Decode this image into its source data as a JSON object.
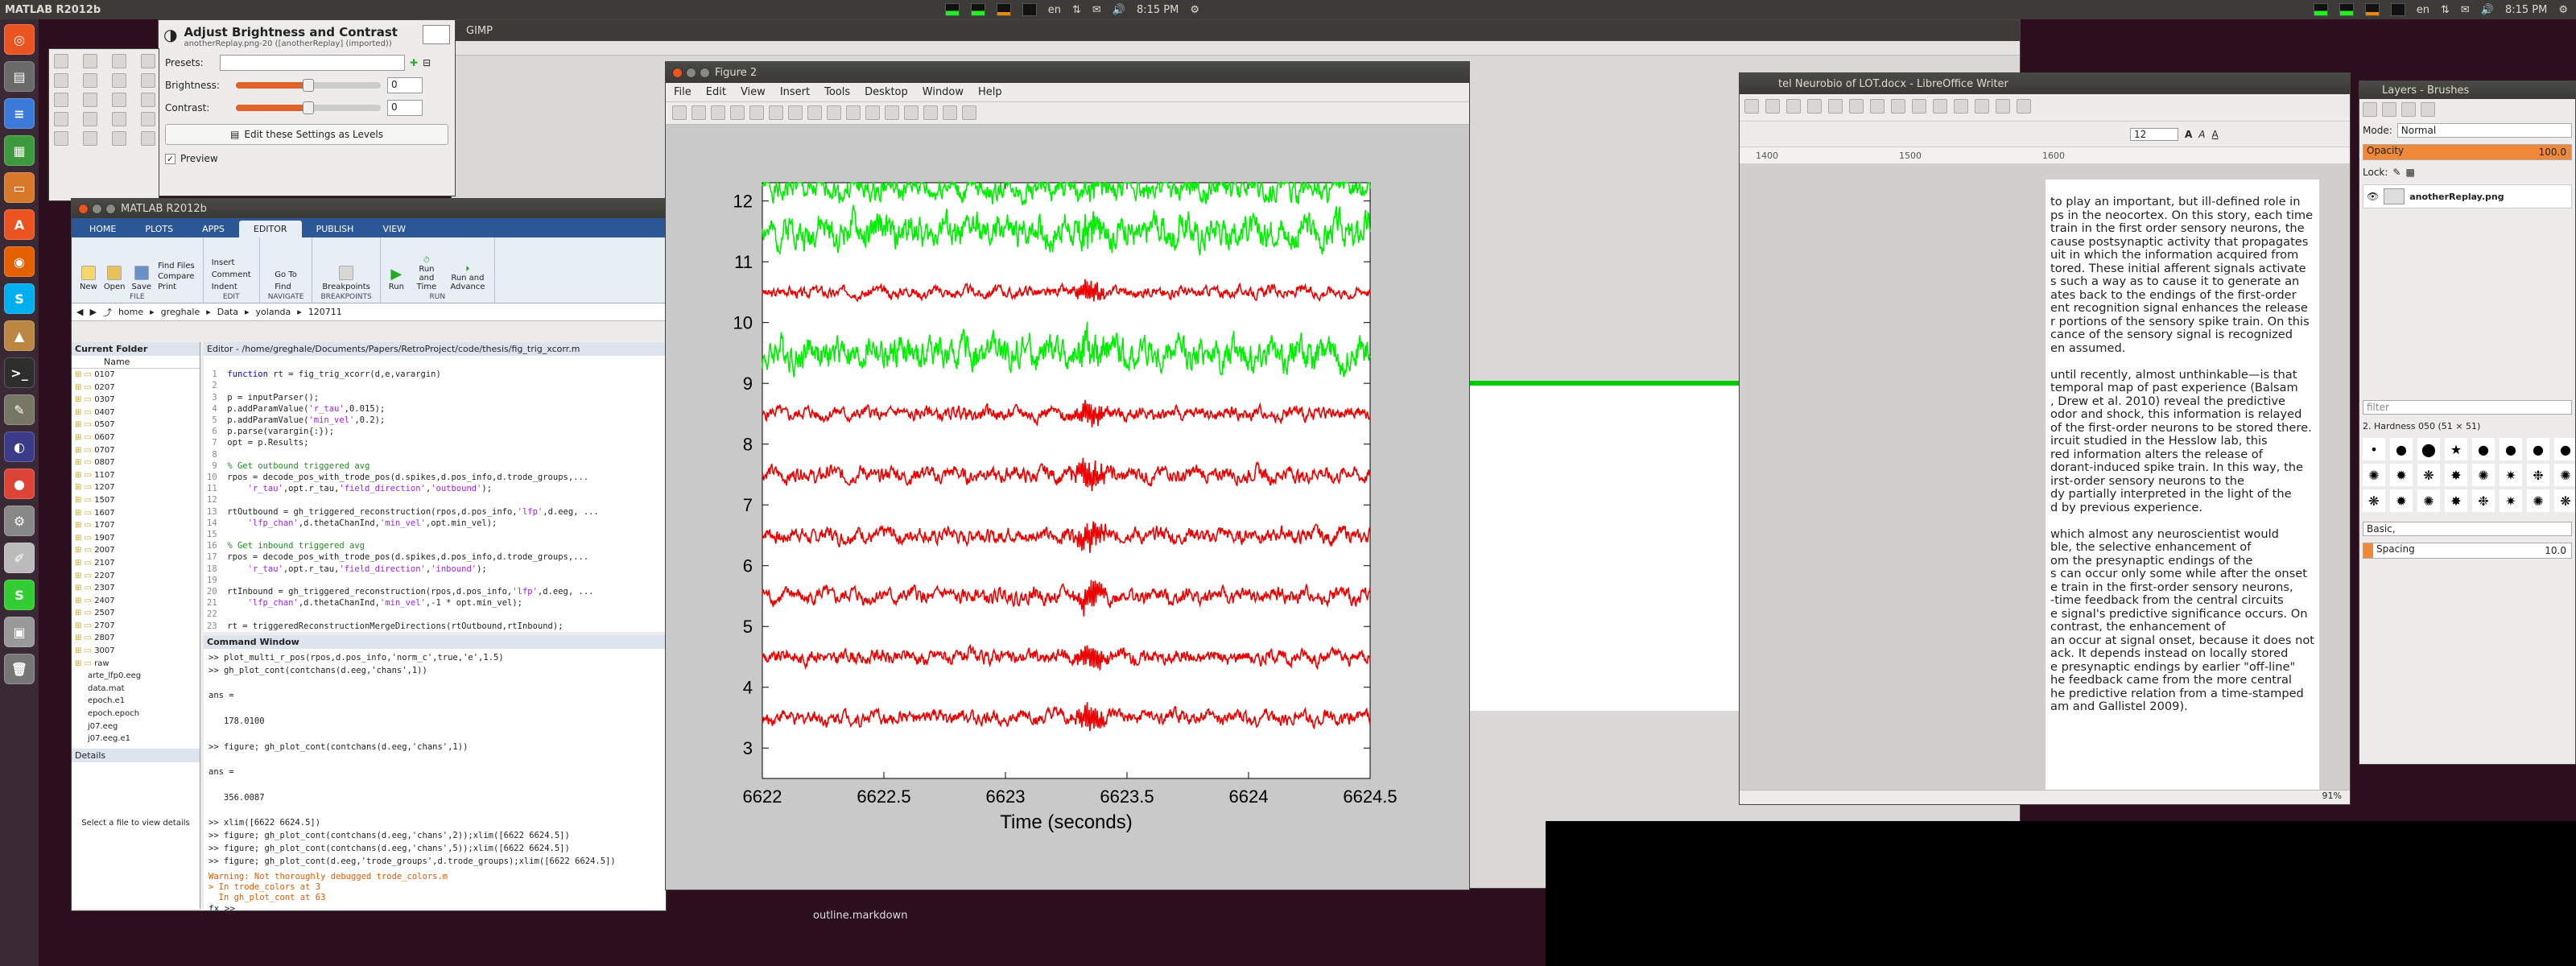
{
  "top_panel": {
    "left_app": "MATLAB R2012b",
    "time": "8:15 PM",
    "lang": "en"
  },
  "gimp": {
    "menubar_title": "GIMP"
  },
  "bc_dialog": {
    "title": "Adjust Brightness and Contrast",
    "subtitle": "anotherReplay.png-20 ([anotherReplay] (imported))",
    "presets_label": "Presets:",
    "brightness_label": "Brightness:",
    "brightness_value": "0",
    "contrast_label": "Contrast:",
    "contrast_value": "0",
    "levels_button": "Edit these Settings as Levels",
    "preview_label": "Preview",
    "brightness_level": 0.5,
    "contrast_level": 0.5
  },
  "matlab": {
    "title": "MATLAB R2012b",
    "tabs": [
      "HOME",
      "PLOTS",
      "APPS",
      "EDITOR",
      "PUBLISH",
      "VIEW"
    ],
    "ribbon": {
      "new": "New",
      "open": "Open",
      "save": "Save",
      "find_files": "Find Files",
      "compare": "Compare",
      "print": "Print",
      "file": "FILE",
      "insert": "Insert",
      "comment": "Comment",
      "indent": "Indent",
      "edit": "EDIT",
      "goto": "Go To",
      "find": "Find",
      "navigate": "NAVIGATE",
      "breakpoints": "Breakpoints",
      "breakpoint_grp": "BREAKPOINTS",
      "run": "Run",
      "run_and_time": "Run and Time",
      "run_and_advance": "Run and Advance",
      "run_grp": "RUN"
    },
    "path": [
      "home",
      "greghale",
      "Data",
      "yolanda",
      "120711"
    ],
    "current_folder": "Current Folder",
    "name_col": "Name",
    "folders": [
      "0107",
      "0207",
      "0307",
      "0407",
      "0507",
      "0607",
      "0707",
      "0807",
      "1107",
      "1207",
      "1507",
      "1607",
      "1707",
      "1907",
      "2007",
      "2107",
      "2207",
      "2307",
      "2407",
      "2507",
      "2707",
      "2807",
      "3007",
      "raw"
    ],
    "files": [
      "arte_lfp0.eeg",
      "data.mat",
      "epoch.e1",
      "epoch.epoch",
      "j07.eeg",
      "j07.eeg.e1"
    ],
    "details": "Details",
    "select_file": "Select a file to view details",
    "editor_path": "Editor - /home/greghale/Documents/Papers/RetroProject/code/thesis/fig_trig_xcorr.m",
    "cmd_title": "Command Window",
    "cmd_lines": [
      ">> plot_multi_r_pos(rpos,d.pos_info,'norm_c',true,'e',1.5)",
      ">> gh_plot_cont(contchans(d.eeg,'chans',1))",
      "",
      "ans =",
      "",
      "   178.0100",
      "",
      ">> figure; gh_plot_cont(contchans(d.eeg,'chans',1))",
      "",
      "ans =",
      "",
      "   356.0087",
      "",
      ">> xlim([6622 6624.5])",
      ">> figure; gh_plot_cont(contchans(d.eeg,'chans',2));xlim([6622 6624.5])",
      ">> figure; gh_plot_cont(contchans(d.eeg,'chans',5));xlim([6622 6624.5])",
      ">> figure; gh_plot_cont(d.eeg,'trode_groups',d.trode_groups);xlim([6622 6624.5])"
    ],
    "warn_lines": [
      "Warning: Not thoroughly debugged trode_colors.m",
      "> In trode_colors at 3",
      "  In gh_plot_cont at 63"
    ],
    "prompt": "fx >>"
  },
  "figure": {
    "title": "Figure 2",
    "menus": [
      "File",
      "Edit",
      "View",
      "Insert",
      "Tools",
      "Desktop",
      "Window",
      "Help"
    ]
  },
  "writer": {
    "title": "tel Neurobio of LOT.docx - LibreOffice Writer",
    "font_size": "12",
    "zoom": "91%",
    "ruler": [
      "1400",
      "1500",
      "1600"
    ],
    "lines": [
      "to play an important, but ill-defined role in",
      "ps in the neocortex. On this story, each time",
      "train in the first order sensory neurons, the",
      "cause postsynaptic activity that propagates",
      "uit in which the information acquired from",
      "tored. These initial afferent signals activate",
      "s such a way as to cause it to generate an",
      "ates back to the endings of the first-order",
      "ent recognition signal enhances the release",
      "r portions of the sensory spike train. On this",
      "cance of the sensory signal is recognized",
      "en assumed.",
      "",
      "until recently, almost unthinkable—is that",
      "temporal map of past experience (Balsam",
      ", Drew et al. 2010) reveal the predictive",
      "odor and shock, this information is relayed",
      "of the first-order neurons to be stored there.",
      "ircuit studied in the Hesslow lab, this",
      "red information alters the release of",
      "dorant-induced spike train. In this way, the",
      "irst-order sensory neurons to the",
      "dy partially interpreted in the light of the",
      "d by previous experience.",
      "",
      "which almost any neuroscientist would",
      "ble, the selective enhancement of",
      "om the presynaptic endings of the",
      "s can occur only some while after the onset",
      "e train in the first-order sensory neurons,",
      "-time feedback from the central circuits",
      "e signal's predictive significance occurs. On",
      "contrast, the enhancement of",
      "an occur at signal onset, because it does not",
      "ack. It depends instead on locally stored",
      "e presynaptic endings by earlier \"off-line\"",
      "he feedback came from the more central",
      "he predictive relation from a time-stamped",
      "am and Gallistel 2009)."
    ]
  },
  "layers": {
    "title": "Layers - Brushes",
    "mode_label": "Mode:",
    "mode_value": "Normal",
    "opacity_label": "Opacity",
    "opacity_value": "100.0",
    "lock_label": "Lock:",
    "layer_name": "anotherReplay.png",
    "filter": "filter",
    "brush_name": "2. Hardness 050 (51 × 51)",
    "preset": "Basic,",
    "spacing_label": "Spacing",
    "spacing_value": "10.0",
    "opacity_level": 1.0
  },
  "gimp_right": {
    "outline": "outline.markdown",
    "dialog_title": "GIMP"
  },
  "chart_data": {
    "type": "line",
    "title": "",
    "xlabel": "Time (seconds)",
    "ylabel": "",
    "xlim": [
      6622,
      6624.5
    ],
    "ylim": [
      2.5,
      12.3
    ],
    "xticks": [
      "6622",
      "6622.5",
      "6623",
      "6623.5",
      "6624",
      "6624.5"
    ],
    "yticks": [
      "3",
      "4",
      "5",
      "6",
      "7",
      "8",
      "9",
      "10",
      "11",
      "12"
    ],
    "series": [
      {
        "color": "#00ee00",
        "offset": 12.2,
        "amp": 0.22,
        "seed": 1
      },
      {
        "color": "#00ee00",
        "offset": 11.5,
        "amp": 0.3,
        "seed": 2
      },
      {
        "color": "#ee0000",
        "offset": 10.5,
        "amp": 0.1,
        "seed": 3
      },
      {
        "color": "#00ee00",
        "offset": 9.5,
        "amp": 0.3,
        "seed": 4
      },
      {
        "color": "#ee0000",
        "offset": 8.5,
        "amp": 0.12,
        "seed": 5
      },
      {
        "color": "#ee0000",
        "offset": 7.5,
        "amp": 0.14,
        "seed": 6
      },
      {
        "color": "#ee0000",
        "offset": 6.5,
        "amp": 0.14,
        "seed": 7
      },
      {
        "color": "#ee0000",
        "offset": 5.5,
        "amp": 0.14,
        "seed": 8
      },
      {
        "color": "#ee0000",
        "offset": 4.5,
        "amp": 0.13,
        "seed": 9
      },
      {
        "color": "#ee0000",
        "offset": 3.5,
        "amp": 0.13,
        "seed": 10
      }
    ]
  }
}
